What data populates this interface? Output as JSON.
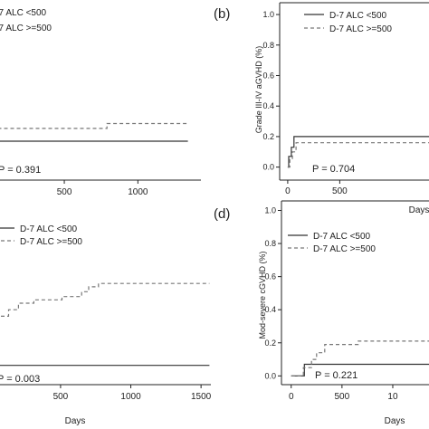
{
  "chart_data": [
    {
      "type": "line",
      "panel_label": "",
      "ylabel": "",
      "xlabel": "",
      "p_value": "P = 0.391",
      "xticks": [
        "500",
        "1000"
      ],
      "yticks": [],
      "legend": [
        "D-7 ALC <500",
        "D-7 ALC >=500"
      ],
      "xlim": [
        -60,
        1410
      ],
      "ylim": [
        -0.02,
        1.03
      ],
      "series": [
        {
          "name": "D-7 ALC <500",
          "style": "solid",
          "x": [
            -60,
            1340
          ],
          "y": [
            0.2,
            0.2
          ]
        },
        {
          "name": "D-7 ALC >=500",
          "style": "dashed",
          "x": [
            -60,
            0,
            0,
            790,
            790,
            1340
          ],
          "y": [
            0.26,
            0.26,
            0.28,
            0.28,
            0.31,
            0.31
          ]
        }
      ]
    },
    {
      "type": "line",
      "panel_label": "(b)",
      "ylabel": "Grade III-IV aGVHD (%)",
      "xlabel": "Days",
      "p_value": "P = 0.704",
      "xticks": [
        "0",
        "500"
      ],
      "yticks": [
        "0.0",
        "0.2",
        "0.4",
        "0.6",
        "0.8",
        "1.0"
      ],
      "legend": [
        "D-7 ALC <500",
        "D-7 ALC >=500"
      ],
      "xlim": [
        -60,
        1410
      ],
      "ylim": [
        -0.02,
        1.03
      ],
      "series": [
        {
          "name": "D-7 ALC <500",
          "style": "solid",
          "x": [
            0,
            10,
            10,
            35,
            35,
            60,
            60,
            1400
          ],
          "y": [
            0,
            0,
            0.07,
            0.07,
            0.13,
            0.13,
            0.2,
            0.2
          ]
        },
        {
          "name": "D-7 ALC >=500",
          "style": "dashed",
          "x": [
            0,
            20,
            20,
            45,
            45,
            80,
            80,
            1400
          ],
          "y": [
            0,
            0,
            0.05,
            0.05,
            0.1,
            0.1,
            0.16,
            0.16
          ]
        }
      ]
    },
    {
      "type": "line",
      "panel_label": "",
      "ylabel": "",
      "xlabel": "Days",
      "p_value": "P = 0.003",
      "xticks": [
        "500",
        "1000",
        "1500"
      ],
      "yticks": [],
      "legend": [
        "D-7 ALC <500",
        "D-7 ALC >=500"
      ],
      "xlim": [
        -60,
        1570
      ],
      "ylim": [
        -0.02,
        1.03
      ],
      "series": [
        {
          "name": "D-7 ALC <500",
          "style": "solid",
          "x": [
            -60,
            1560
          ],
          "y": [
            0.07,
            0.07
          ]
        },
        {
          "name": "D-7 ALC >=500",
          "style": "dashed",
          "x": [
            -60,
            130,
            130,
            200,
            200,
            310,
            310,
            510,
            510,
            650,
            650,
            700,
            700,
            770,
            770,
            1560
          ],
          "y": [
            0.37,
            0.37,
            0.41,
            0.41,
            0.45,
            0.45,
            0.47,
            0.47,
            0.49,
            0.49,
            0.52,
            0.52,
            0.55,
            0.55,
            0.57,
            0.57
          ]
        }
      ]
    },
    {
      "type": "line",
      "panel_label": "(d)",
      "ylabel": "Mod-severe cGVHD (%)",
      "xlabel": "Days",
      "p_value": "P = 0.221",
      "xticks": [
        "0",
        "500",
        "10"
      ],
      "yticks": [
        "0.0",
        "0.2",
        "0.4",
        "0.6",
        "0.8",
        "1.0"
      ],
      "legend": [
        "D-7 ALC <500",
        "D-7 ALC >=500"
      ],
      "xlim": [
        -60,
        1410
      ],
      "ylim": [
        -0.02,
        1.03
      ],
      "series": [
        {
          "name": "D-7 ALC <500",
          "style": "solid",
          "x": [
            0,
            130,
            130,
            1400
          ],
          "y": [
            0,
            0,
            0.07,
            0.07
          ]
        },
        {
          "name": "D-7 ALC >=500",
          "style": "dashed",
          "x": [
            0,
            120,
            120,
            200,
            200,
            250,
            250,
            330,
            330,
            660,
            660,
            1400
          ],
          "y": [
            0,
            0,
            0.05,
            0.05,
            0.1,
            0.1,
            0.14,
            0.14,
            0.19,
            0.19,
            0.21,
            0.21
          ]
        }
      ]
    }
  ]
}
